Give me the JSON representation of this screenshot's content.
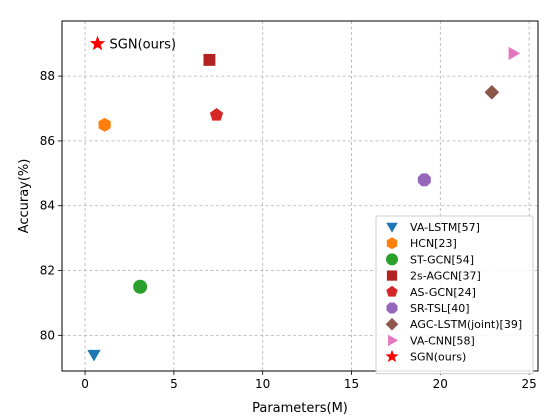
{
  "chart_data": {
    "type": "scatter",
    "title": "",
    "xlabel": "Parameters(M)",
    "ylabel": "Accuray(%)",
    "xlim": [
      -1.3,
      25.5
    ],
    "ylim": [
      78.9,
      89.7
    ],
    "xticks": [
      0,
      5,
      10,
      15,
      20,
      25
    ],
    "yticks": [
      80,
      82,
      84,
      86,
      88
    ],
    "grid": true,
    "grid_style": "dashed",
    "legend_position": "lower-right",
    "series": [
      {
        "name": "VA-LSTM[57]",
        "x": 0.5,
        "y": 79.4,
        "marker": "triangle-down",
        "color": "#1f77b4"
      },
      {
        "name": "HCN[23]",
        "x": 1.1,
        "y": 86.5,
        "marker": "hexagon",
        "color": "#ff7f0e"
      },
      {
        "name": "ST-GCN[54]",
        "x": 3.1,
        "y": 81.5,
        "marker": "circle",
        "color": "#2ca02c"
      },
      {
        "name": "2s-AGCN[37]",
        "x": 7.0,
        "y": 88.5,
        "marker": "square",
        "color": "#b22222"
      },
      {
        "name": "AS-GCN[24]",
        "x": 7.4,
        "y": 86.8,
        "marker": "pentagon",
        "color": "#d62728"
      },
      {
        "name": "SR-TSL[40]",
        "x": 19.1,
        "y": 84.8,
        "marker": "octagon",
        "color": "#9467bd"
      },
      {
        "name": "AGC-LSTM(joint)[39]",
        "x": 22.9,
        "y": 87.5,
        "marker": "diamond",
        "color": "#8c564b"
      },
      {
        "name": "VA-CNN[58]",
        "x": 24.1,
        "y": 88.7,
        "marker": "triangle-right",
        "color": "#e377c2"
      },
      {
        "name": "SGN(ours)",
        "x": 0.7,
        "y": 89.0,
        "marker": "star",
        "color": "#ff0000"
      }
    ],
    "annotations": [
      {
        "text": "SGN(ours)",
        "x": 0.7,
        "y": 89.0
      }
    ]
  }
}
